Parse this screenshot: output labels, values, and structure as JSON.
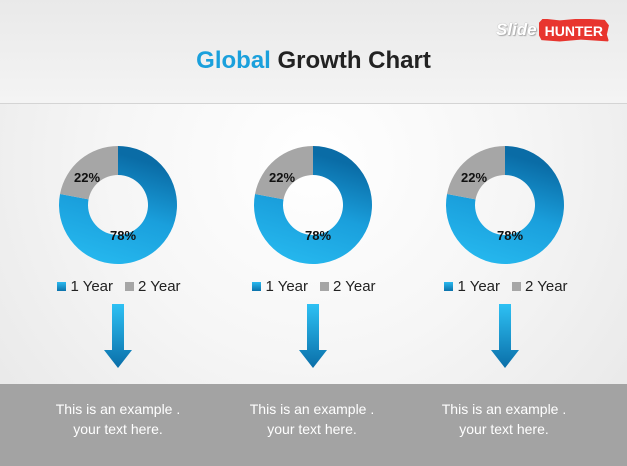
{
  "header": {
    "title_accent": "Global",
    "title_rest": "Growth Chart"
  },
  "logo": {
    "part1": "Slide",
    "part2": "HUNTER"
  },
  "colors": {
    "series1_light": "#24b8f0",
    "series1_dark": "#0a6fa8",
    "series2": "#a6a6a6"
  },
  "chart_data": [
    {
      "type": "pie",
      "categories": [
        "1 Year",
        "2 Year"
      ],
      "values": [
        78,
        22
      ],
      "labels": [
        "78%",
        "22%"
      ],
      "legend": "bottom"
    },
    {
      "type": "pie",
      "categories": [
        "1 Year",
        "2 Year"
      ],
      "values": [
        78,
        22
      ],
      "labels": [
        "78%",
        "22%"
      ],
      "legend": "bottom"
    },
    {
      "type": "pie",
      "categories": [
        "1 Year",
        "2 Year"
      ],
      "values": [
        78,
        22
      ],
      "labels": [
        "78%",
        "22%"
      ],
      "legend": "bottom"
    }
  ],
  "captions": [
    {
      "line1": "This is an example .",
      "line2": "your text here."
    },
    {
      "line1": "This is an example .",
      "line2": "your text here."
    },
    {
      "line1": "This is an example .",
      "line2": "your text here."
    }
  ]
}
